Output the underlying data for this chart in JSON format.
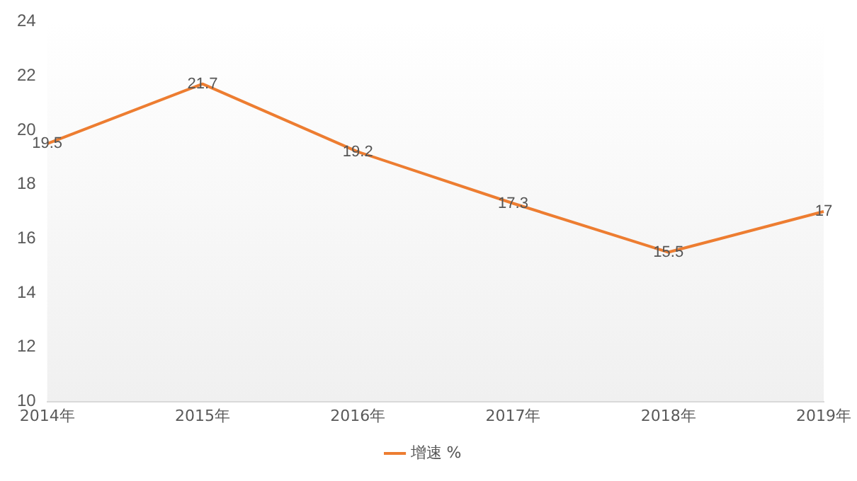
{
  "chart_data": {
    "type": "line",
    "categories": [
      "2014年",
      "2015年",
      "2016年",
      "2017年",
      "2018年",
      "2019年"
    ],
    "series": [
      {
        "name": "增速 %",
        "color": "#ed7d31",
        "values": [
          19.5,
          21.7,
          19.2,
          17.3,
          15.5,
          17
        ]
      }
    ],
    "ylim": [
      10,
      24
    ],
    "yticks": [
      10,
      12,
      14,
      16,
      18,
      20,
      22,
      24
    ],
    "grid": false,
    "legend": "bottom",
    "data_labels": true,
    "marker": "none",
    "line_style": "solid"
  }
}
